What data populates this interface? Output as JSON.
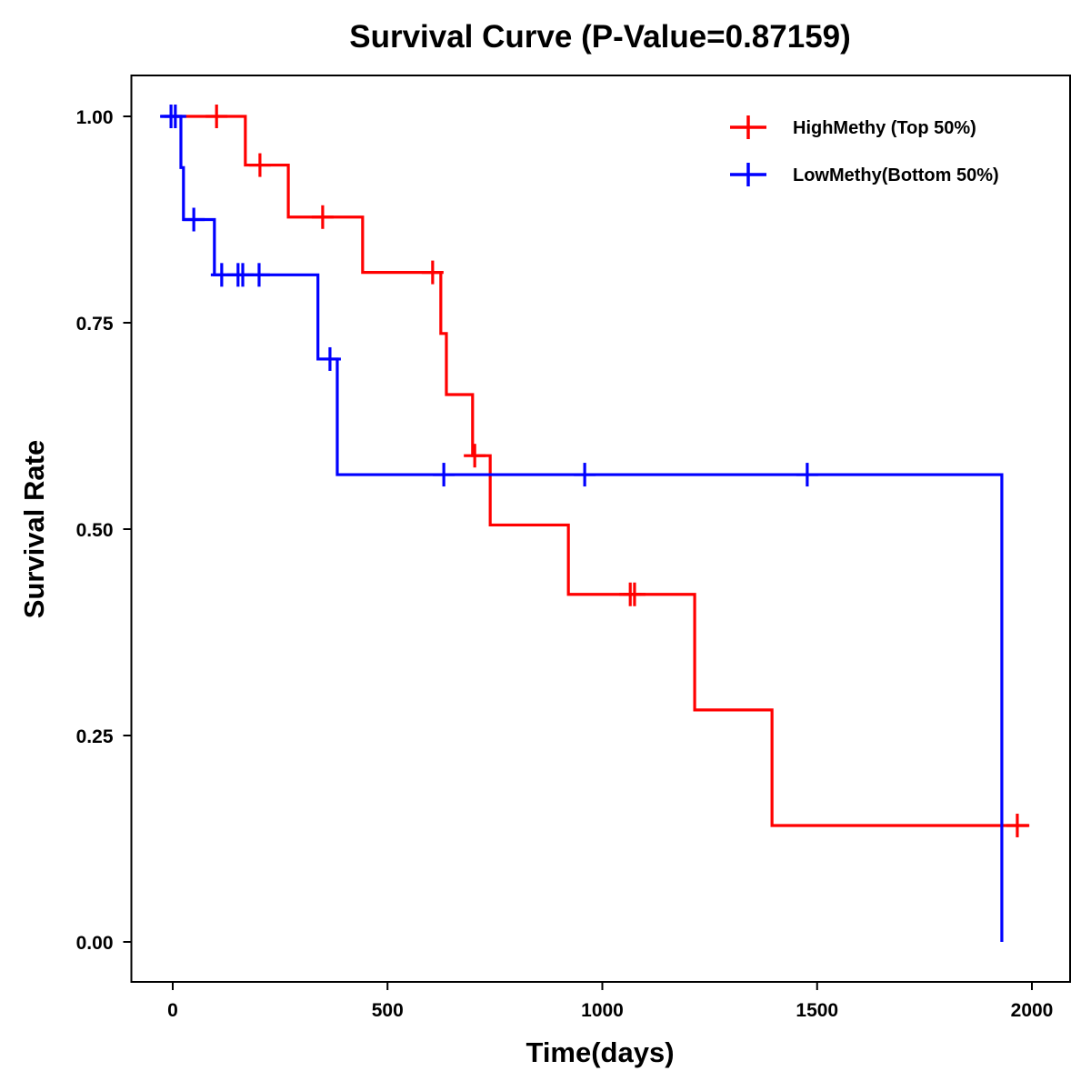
{
  "chart_data": {
    "type": "line",
    "subtype": "kaplan-meier-step",
    "title": "Survival Curve (P-Value=0.87159)",
    "xlabel": "Time(days)",
    "ylabel": "Survival Rate",
    "xlim": [
      -95,
      2090
    ],
    "ylim": [
      -0.05,
      1.05
    ],
    "xticks": [
      0,
      500,
      1000,
      1500,
      2000
    ],
    "xtick_labels": [
      "0",
      "500",
      "1000",
      "1500",
      "2000"
    ],
    "yticks": [
      0,
      0.25,
      0.5,
      0.75,
      1.0
    ],
    "ytick_labels": [
      "0.00",
      "0.25",
      "0.50",
      "0.75",
      "1.00"
    ],
    "grid": false,
    "legend_position": "top-right",
    "series": [
      {
        "name": "HighMethy (Top 50%)",
        "color": "#ff0000",
        "steps": [
          {
            "x": 0,
            "y": 1.0
          },
          {
            "x": 169,
            "y": 0.941
          },
          {
            "x": 269,
            "y": 0.878
          },
          {
            "x": 442,
            "y": 0.811
          },
          {
            "x": 624,
            "y": 0.737
          },
          {
            "x": 637,
            "y": 0.663
          },
          {
            "x": 698,
            "y": 0.589
          },
          {
            "x": 739,
            "y": 0.505
          },
          {
            "x": 921,
            "y": 0.421
          },
          {
            "x": 1215,
            "y": 0.281
          },
          {
            "x": 1395,
            "y": 0.141
          }
        ],
        "end_x": 1994,
        "censored": [
          {
            "x": 102,
            "y": 1.0
          },
          {
            "x": 203,
            "y": 0.941
          },
          {
            "x": 349,
            "y": 0.878
          },
          {
            "x": 605,
            "y": 0.811
          },
          {
            "x": 703,
            "y": 0.589
          },
          {
            "x": 1065,
            "y": 0.421
          },
          {
            "x": 1075,
            "y": 0.421
          },
          {
            "x": 1966,
            "y": 0.141
          }
        ]
      },
      {
        "name": "LowMethy(Bottom 50%)",
        "color": "#0000ff",
        "steps": [
          {
            "x": -27,
            "y": 1.0
          },
          {
            "x": 19,
            "y": 0.938
          },
          {
            "x": 25,
            "y": 0.875
          },
          {
            "x": 97,
            "y": 0.808
          },
          {
            "x": 338,
            "y": 0.706
          },
          {
            "x": 383,
            "y": 0.566
          },
          {
            "x": 1930,
            "y": 0.0
          }
        ],
        "end_x": 1930,
        "censored": [
          {
            "x": -4,
            "y": 1.0
          },
          {
            "x": 6,
            "y": 1.0
          },
          {
            "x": 49,
            "y": 0.875
          },
          {
            "x": 114,
            "y": 0.808
          },
          {
            "x": 152,
            "y": 0.808
          },
          {
            "x": 163,
            "y": 0.808
          },
          {
            "x": 201,
            "y": 0.808
          },
          {
            "x": 366,
            "y": 0.706
          },
          {
            "x": 631,
            "y": 0.566
          },
          {
            "x": 959,
            "y": 0.566
          },
          {
            "x": 1477,
            "y": 0.566
          }
        ]
      }
    ]
  }
}
